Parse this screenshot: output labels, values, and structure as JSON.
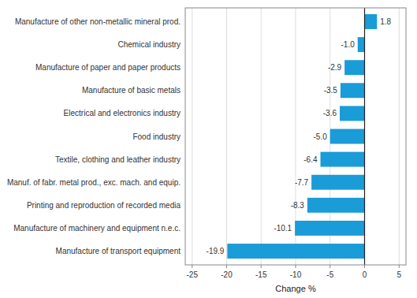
{
  "chart_data": {
    "type": "bar",
    "orientation": "horizontal",
    "categories": [
      "Manufacture of transport equipment",
      "Manufacture of machinery and equipment n.e.c.",
      "Printing and reproduction of recorded media",
      "Manuf. of fabr. metal prod., exc. mach. and equip.",
      "Textile, clothing and leather industry",
      "Food industry",
      "Electrical and electronics industry",
      "Manufacture of basic metals",
      "Manufacture of paper and paper products",
      "Chemical industry",
      "Manufacture of other non-metallic mineral prod."
    ],
    "values": [
      -19.9,
      -10.1,
      -8.3,
      -7.7,
      -6.4,
      -5.0,
      -3.6,
      -3.5,
      -2.9,
      -1.0,
      1.8
    ],
    "value_labels": [
      "-19.9",
      "-10.1",
      "-8.3",
      "-7.7",
      "-6.4",
      "-5.0",
      "-3.6",
      "-3.5",
      "-2.9",
      "-1.0",
      "1.8"
    ],
    "color": "#1a9cd8",
    "xlabel": "Change %",
    "xlim": [
      -26,
      6
    ],
    "xticks": [
      -25,
      -20,
      -15,
      -10,
      -5,
      0,
      5
    ],
    "grid": true,
    "data_labels": true
  }
}
